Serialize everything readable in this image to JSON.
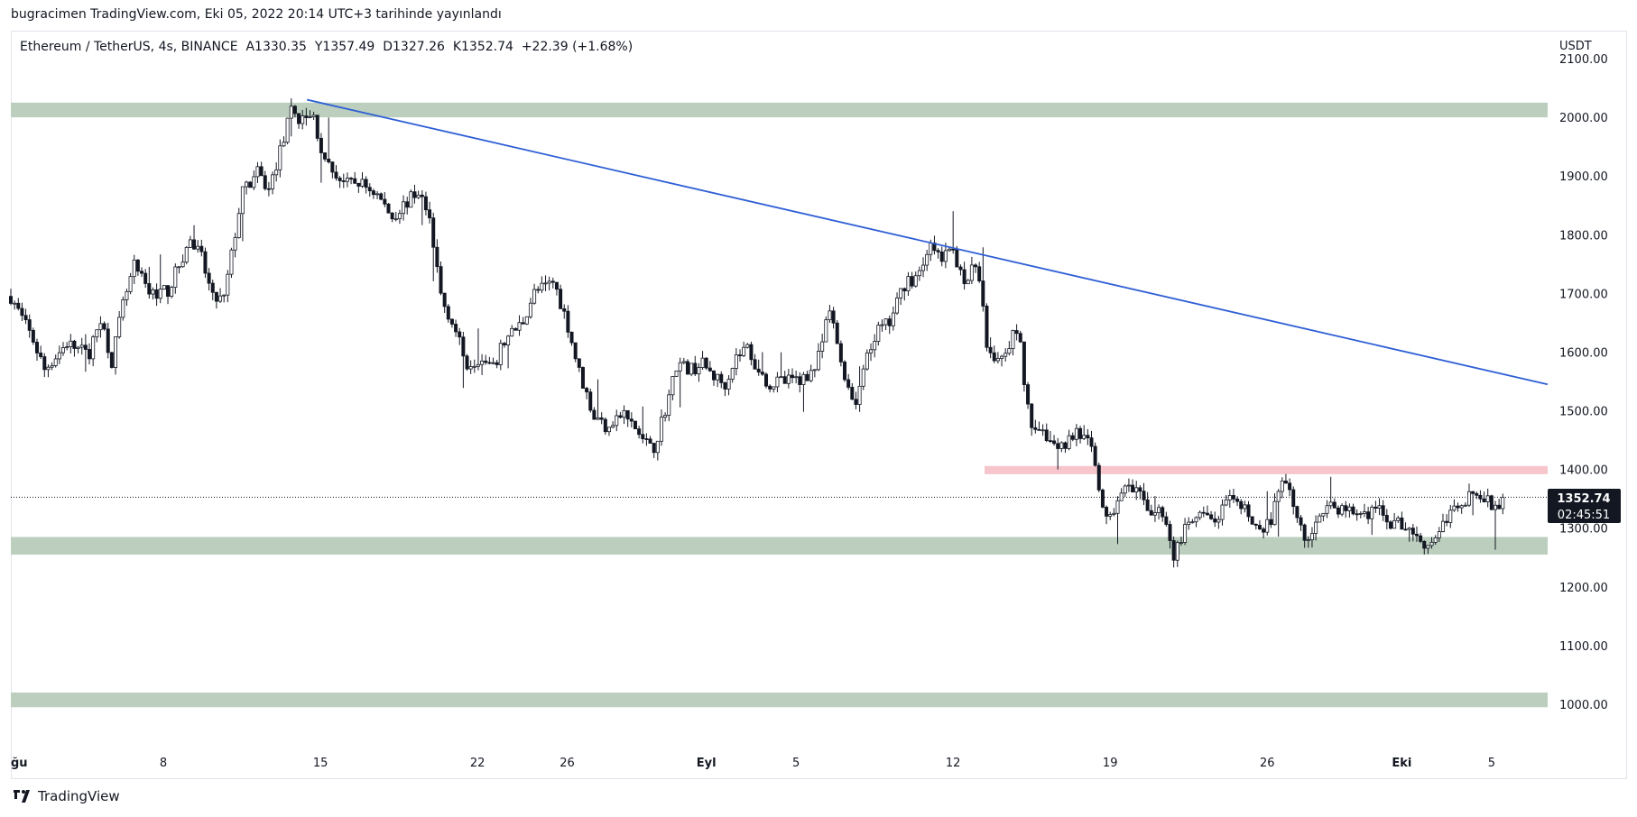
{
  "header": {
    "published_by": "bugracimen TradingView.com, Eki 05, 2022 20:14 UTC+3 tarihinde yayınlandı"
  },
  "legend": {
    "symbol": "Ethereum / TetherUS, 4s, BINANCE",
    "open_label": "A",
    "open": "1330.35",
    "high_label": "Y",
    "high": "1357.49",
    "low_label": "D",
    "low": "1327.26",
    "close_label": "K",
    "close": "1352.74",
    "change": "+22.39 (+1.68%)"
  },
  "price_axis": {
    "currency": "USDT",
    "last_price": "1352.74",
    "countdown": "02:45:51"
  },
  "footer": {
    "brand": "TradingView"
  },
  "colors": {
    "support_zone": "#bccfbf",
    "resistance_zone": "#f6c6cc",
    "trendline": "#2f5fd6",
    "candle": "#131722",
    "price_label_bg": "#131722"
  },
  "chart_data": {
    "type": "candlestick",
    "instrument": "ETH/USDT",
    "timeframe": "4h",
    "ylim": [
      1000,
      2100
    ],
    "y_ticks": [
      "2100.00",
      "2000.00",
      "1900.00",
      "1800.00",
      "1700.00",
      "1600.00",
      "1500.00",
      "1400.00",
      "1300.00",
      "1200.00",
      "1100.00",
      "1000.00"
    ],
    "x_ticks": [
      "ğu",
      "8",
      "15",
      "22",
      "26",
      "Eyl",
      "5",
      "12",
      "19",
      "26",
      "Eki",
      "5"
    ],
    "x_tick_days": [
      0,
      6.8,
      13.8,
      20.8,
      24.8,
      31,
      35,
      42,
      49,
      56,
      62,
      66
    ],
    "x_range_days": [
      0,
      68.5
    ],
    "zones": [
      {
        "kind": "support",
        "y_low": 2000,
        "y_high": 2025,
        "x_start_day": 0,
        "x_end_day": 68.5
      },
      {
        "kind": "support",
        "y_low": 1255,
        "y_high": 1285,
        "x_start_day": 0,
        "x_end_day": 68.5
      },
      {
        "kind": "support",
        "y_low": 995,
        "y_high": 1020,
        "x_start_day": 0,
        "x_end_day": 68.5
      },
      {
        "kind": "resistance",
        "y_low": 1392,
        "y_high": 1406,
        "x_start_day": 43.4,
        "x_end_day": 68.5
      }
    ],
    "trendline": {
      "x1_day": 13.2,
      "y1": 2030,
      "x2_day": 68.5,
      "y2": 1545
    },
    "last_price": 1352.74,
    "keypoints": [
      [
        0,
        1695
      ],
      [
        1,
        1620
      ],
      [
        1.5,
        1570
      ],
      [
        2.5,
        1615
      ],
      [
        3.5,
        1595
      ],
      [
        4,
        1660
      ],
      [
        4.5,
        1585
      ],
      [
        5,
        1680
      ],
      [
        5.5,
        1745
      ],
      [
        6.2,
        1700
      ],
      [
        7,
        1705
      ],
      [
        8,
        1790
      ],
      [
        8.5,
        1760
      ],
      [
        9,
        1690
      ],
      [
        9.5,
        1690
      ],
      [
        10.3,
        1870
      ],
      [
        11,
        1905
      ],
      [
        11.5,
        1875
      ],
      [
        12.5,
        2010
      ],
      [
        13,
        1995
      ],
      [
        13.5,
        2000
      ],
      [
        14,
        1920
      ],
      [
        15,
        1885
      ],
      [
        15.5,
        1890
      ],
      [
        16.3,
        1870
      ],
      [
        17,
        1830
      ],
      [
        17.5,
        1850
      ],
      [
        18.2,
        1875
      ],
      [
        18.7,
        1820
      ],
      [
        19.2,
        1690
      ],
      [
        19.7,
        1650
      ],
      [
        20.3,
        1580
      ],
      [
        20.8,
        1590
      ],
      [
        21.5,
        1570
      ],
      [
        22,
        1620
      ],
      [
        22.8,
        1650
      ],
      [
        23.3,
        1700
      ],
      [
        24.2,
        1720
      ],
      [
        24.8,
        1650
      ],
      [
        25.3,
        1570
      ],
      [
        26,
        1490
      ],
      [
        26.5,
        1475
      ],
      [
        27.3,
        1495
      ],
      [
        28,
        1460
      ],
      [
        28.6,
        1430
      ],
      [
        29.3,
        1520
      ],
      [
        29.7,
        1580
      ],
      [
        30.3,
        1570
      ],
      [
        30.8,
        1580
      ],
      [
        31.3,
        1560
      ],
      [
        31.8,
        1545
      ],
      [
        32.3,
        1590
      ],
      [
        32.8,
        1610
      ],
      [
        33.3,
        1570
      ],
      [
        33.8,
        1545
      ],
      [
        34.5,
        1550
      ],
      [
        35.3,
        1555
      ],
      [
        35.9,
        1575
      ],
      [
        36.5,
        1670
      ],
      [
        37.1,
        1570
      ],
      [
        37.6,
        1510
      ],
      [
        38.1,
        1580
      ],
      [
        38.6,
        1635
      ],
      [
        39.2,
        1650
      ],
      [
        39.8,
        1715
      ],
      [
        40.4,
        1730
      ],
      [
        40.9,
        1780
      ],
      [
        41.5,
        1760
      ],
      [
        42,
        1770
      ],
      [
        42.6,
        1720
      ],
      [
        43.1,
        1755
      ],
      [
        43.5,
        1620
      ],
      [
        43.9,
        1590
      ],
      [
        44.4,
        1610
      ],
      [
        44.9,
        1640
      ],
      [
        45.4,
        1480
      ],
      [
        46,
        1470
      ],
      [
        46.5,
        1440
      ],
      [
        47,
        1445
      ],
      [
        47.5,
        1465
      ],
      [
        48.1,
        1440
      ],
      [
        48.5,
        1370
      ],
      [
        48.9,
        1300
      ],
      [
        49.5,
        1370
      ],
      [
        50.3,
        1355
      ],
      [
        50.9,
        1325
      ],
      [
        51.4,
        1330
      ],
      [
        51.8,
        1250
      ],
      [
        52.3,
        1295
      ],
      [
        53,
        1320
      ],
      [
        53.6,
        1310
      ],
      [
        54.3,
        1345
      ],
      [
        55.2,
        1325
      ],
      [
        55.8,
        1285
      ],
      [
        56.3,
        1330
      ],
      [
        56.8,
        1390
      ],
      [
        57.3,
        1320
      ],
      [
        57.8,
        1270
      ],
      [
        58.3,
        1330
      ],
      [
        59.1,
        1335
      ],
      [
        60,
        1325
      ],
      [
        60.9,
        1330
      ],
      [
        61.5,
        1310
      ],
      [
        62.2,
        1305
      ],
      [
        62.7,
        1285
      ],
      [
        63.2,
        1270
      ],
      [
        63.8,
        1305
      ],
      [
        64.6,
        1345
      ],
      [
        65.2,
        1360
      ],
      [
        65.8,
        1345
      ],
      [
        66.2,
        1335
      ],
      [
        66.5,
        1352.74
      ]
    ]
  }
}
